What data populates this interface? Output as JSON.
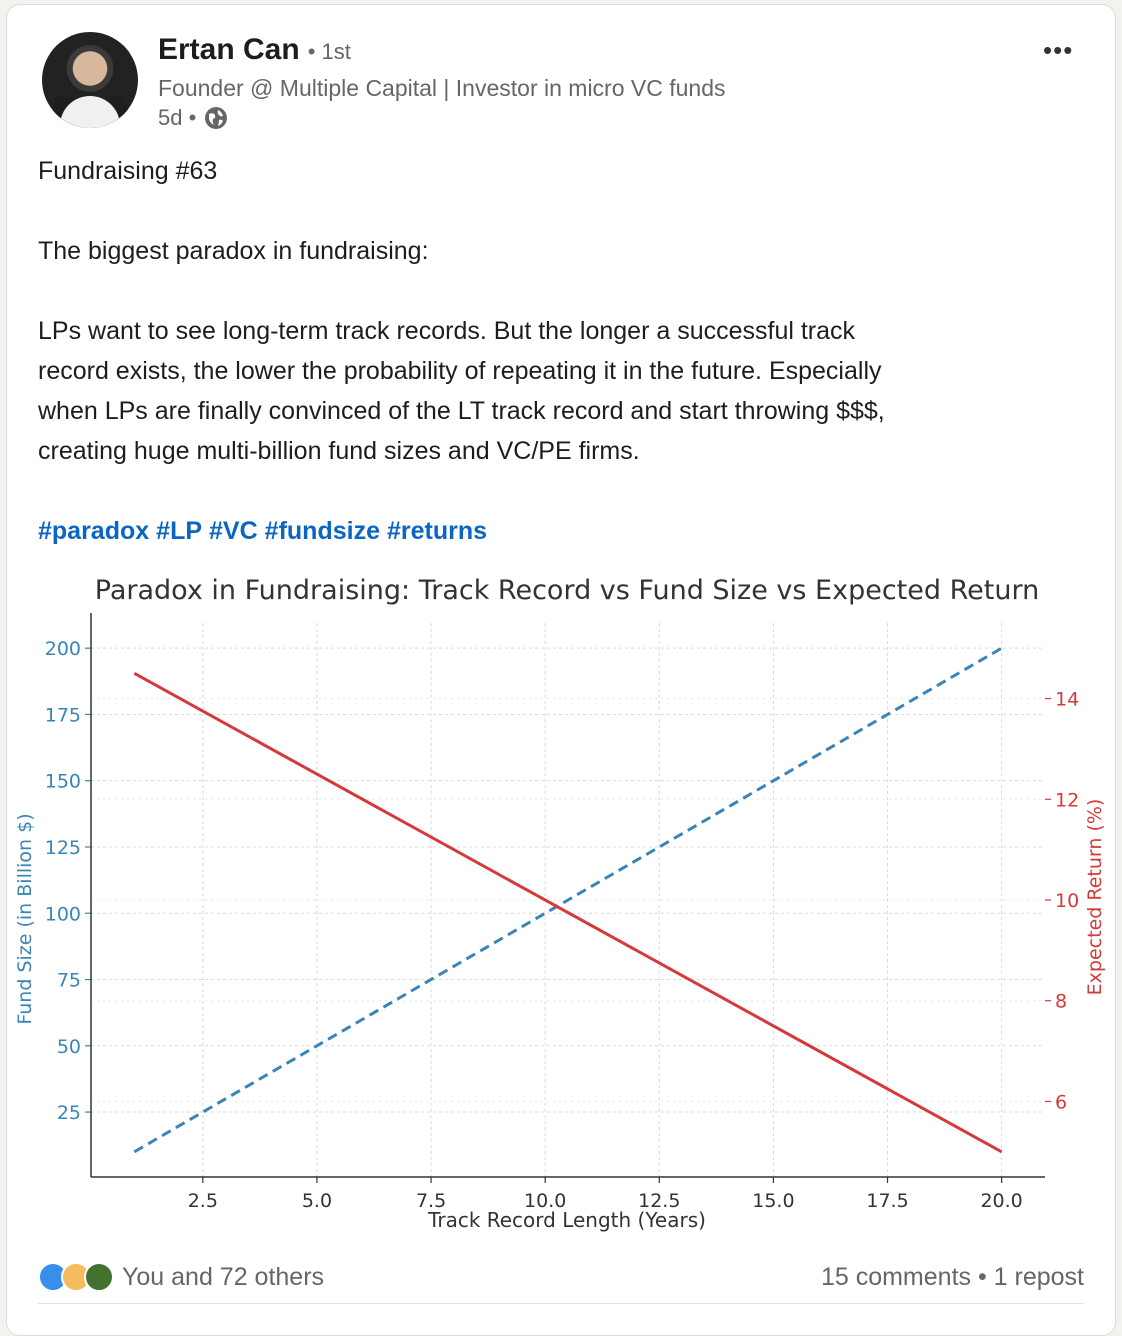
{
  "author": {
    "name": "Ertan Can",
    "degree": "• 1st",
    "headline": "Founder @ Multiple Capital  |  Investor in micro VC funds",
    "time": "5d •",
    "visibility_icon": "globe-icon"
  },
  "menu_icon": "more-options-icon",
  "post": {
    "line1": "Fundraising #63",
    "line2": "The biggest paradox in fundraising:",
    "body_lines": [
      "LPs want to see long-term track records. But the longer a successful track",
      "record exists, the lower the probability of repeating it in the future. Especially",
      "when LPs are finally convinced of the LT track record and start throwing $$$,",
      "creating huge multi-billion fund sizes and VC/PE firms."
    ],
    "hashtags": [
      "#paradox",
      "#LP",
      "#VC",
      "#fundsize",
      "#returns"
    ]
  },
  "chart_data": {
    "type": "line",
    "title": "Paradox in Fundraising: Track Record vs Fund Size vs Expected Return",
    "xlabel": "Track Record Length (Years)",
    "ylabel_left": "Fund Size (in Billion $)",
    "ylabel_right": "Expected Return (%)",
    "xlim": [
      0.05,
      20.95
    ],
    "ylim_left": [
      0.5,
      209.5
    ],
    "ylim_right": [
      4.5,
      15.5
    ],
    "xticks": [
      "2.5",
      "5.0",
      "7.5",
      "10.0",
      "12.5",
      "15.0",
      "17.5",
      "20.0"
    ],
    "yticks_left": [
      "25",
      "50",
      "75",
      "100",
      "125",
      "150",
      "175",
      "200"
    ],
    "yticks_right": [
      "6",
      "8",
      "10",
      "12",
      "14"
    ],
    "grid": true,
    "series": [
      {
        "axis": "left",
        "style": "dashed",
        "color": "#3b84b8",
        "x": [
          1,
          20
        ],
        "y": [
          10,
          200
        ]
      },
      {
        "axis": "right",
        "style": "solid",
        "color": "#d43a3a",
        "x": [
          1,
          20
        ],
        "y": [
          14.5,
          5
        ]
      }
    ]
  },
  "footer": {
    "reactions_text": "You and 72 others",
    "counts_text": "15 comments • 1 repost"
  },
  "colors": {
    "link": "#0a66c2",
    "left_axis": "#3b84b8",
    "right_axis": "#d43a3a"
  }
}
